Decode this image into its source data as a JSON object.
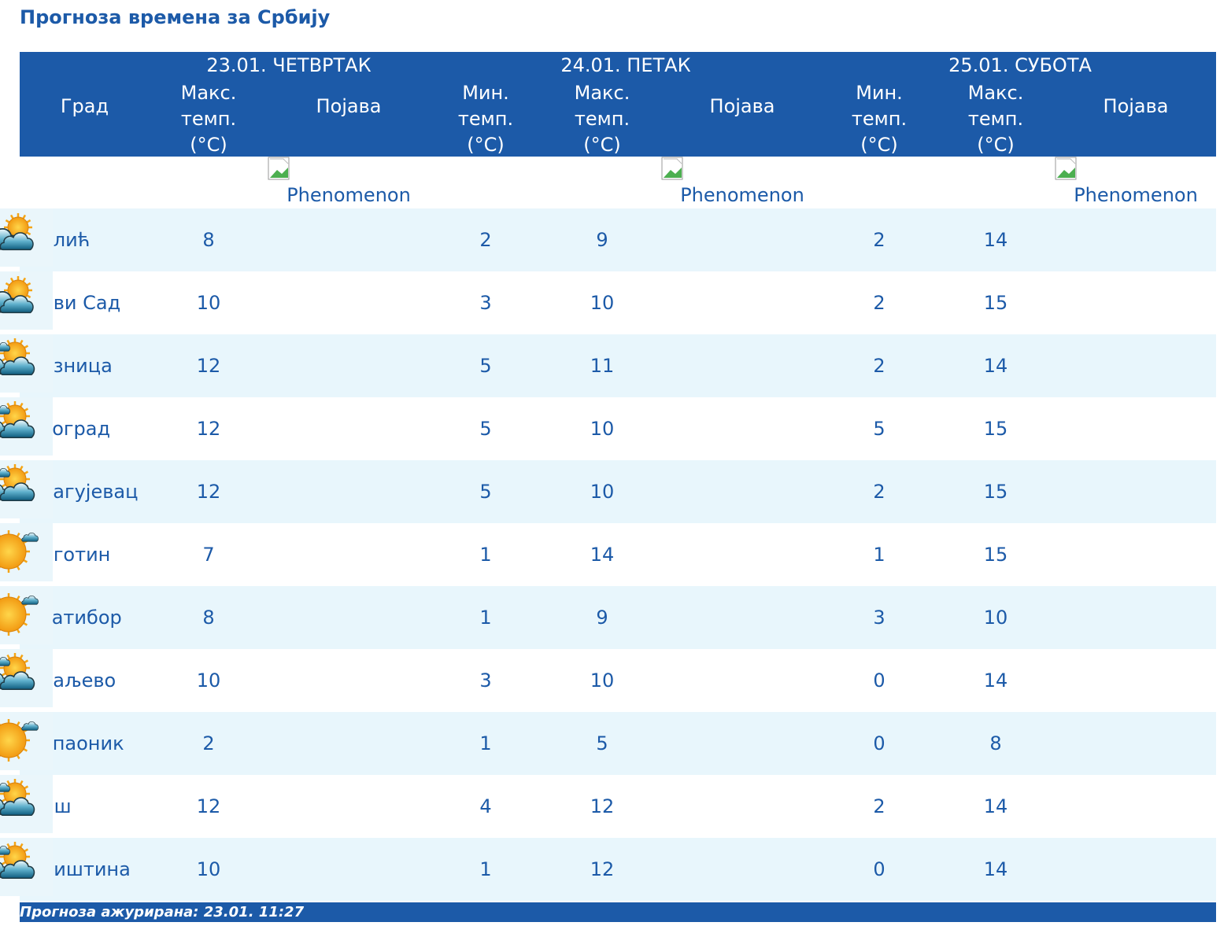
{
  "title": "Прогноза времена за Србију",
  "table": {
    "days": [
      "23.01. ЧЕТВРТАК",
      "24.01. ПЕТАК",
      "25.01. СУБОТА"
    ],
    "columns": [
      "Град",
      "Макс. темп. (°C)",
      "Појава",
      "Мин. темп. (°C)",
      "Макс. темп. (°C)",
      "Појава",
      "Мин. темп. (°C)",
      "Макс. темп. (°C)",
      "Појава"
    ],
    "image_alts": [
      "Phenomenon",
      "Phenomenon",
      "Phenomenon"
    ],
    "rows": [
      [
        "Палић",
        "8",
        "2",
        "9",
        "2",
        "14"
      ],
      [
        "Нови Сад",
        "10",
        "3",
        "10",
        "2",
        "15"
      ],
      [
        "Лозница",
        "12",
        "5",
        "11",
        "2",
        "14"
      ],
      [
        "Београд",
        "12",
        "5",
        "10",
        "5",
        "15"
      ],
      [
        "Крагујевац",
        "12",
        "5",
        "10",
        "2",
        "15"
      ],
      [
        "Неготин",
        "7",
        "1",
        "14",
        "1",
        "15"
      ],
      [
        "Златибор",
        "8",
        "1",
        "9",
        "3",
        "10"
      ],
      [
        "Краљево",
        "10",
        "3",
        "10",
        "0",
        "14"
      ],
      [
        "Копаоник",
        "2",
        "1",
        "5",
        "0",
        "8"
      ],
      [
        "Ниш",
        "12",
        "4",
        "12",
        "2",
        "14"
      ],
      [
        "Приштина",
        "10",
        "1",
        "12",
        "0",
        "14"
      ]
    ],
    "footer": "Прогноза ажурирана:  23.01. 11:27"
  }
}
